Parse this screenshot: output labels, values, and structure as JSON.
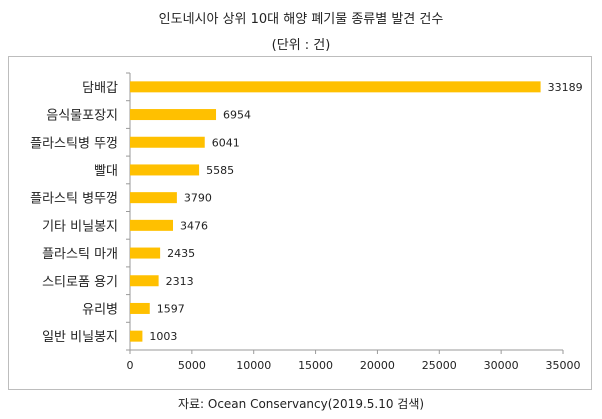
{
  "title": "인도네시아 상위 10대 해양 폐기물 종류별 발견 건수",
  "subtitle": "(단위 : 건)",
  "source": "자료: Ocean Conservancy(2019.5.10 검색)",
  "colors": {
    "bar": "#FFC000",
    "axis": "#9a9a9a"
  },
  "chart_data": {
    "type": "bar",
    "orientation": "horizontal",
    "categories": [
      "담배갑",
      "음식물포장지",
      "플라스틱병 뚜껑",
      "빨대",
      "플라스틱 병뚜껑",
      "기타 비닐봉지",
      "플라스틱 마개",
      "스티로폼 용기",
      "유리병",
      "일반 비닐봉지"
    ],
    "values": [
      33189,
      6954,
      6041,
      5585,
      3790,
      3476,
      2435,
      2313,
      1597,
      1003
    ],
    "xlim": [
      0,
      35000
    ],
    "xticks": [
      0,
      5000,
      10000,
      15000,
      20000,
      25000,
      30000,
      35000
    ],
    "grid": false,
    "data_labels": true
  }
}
